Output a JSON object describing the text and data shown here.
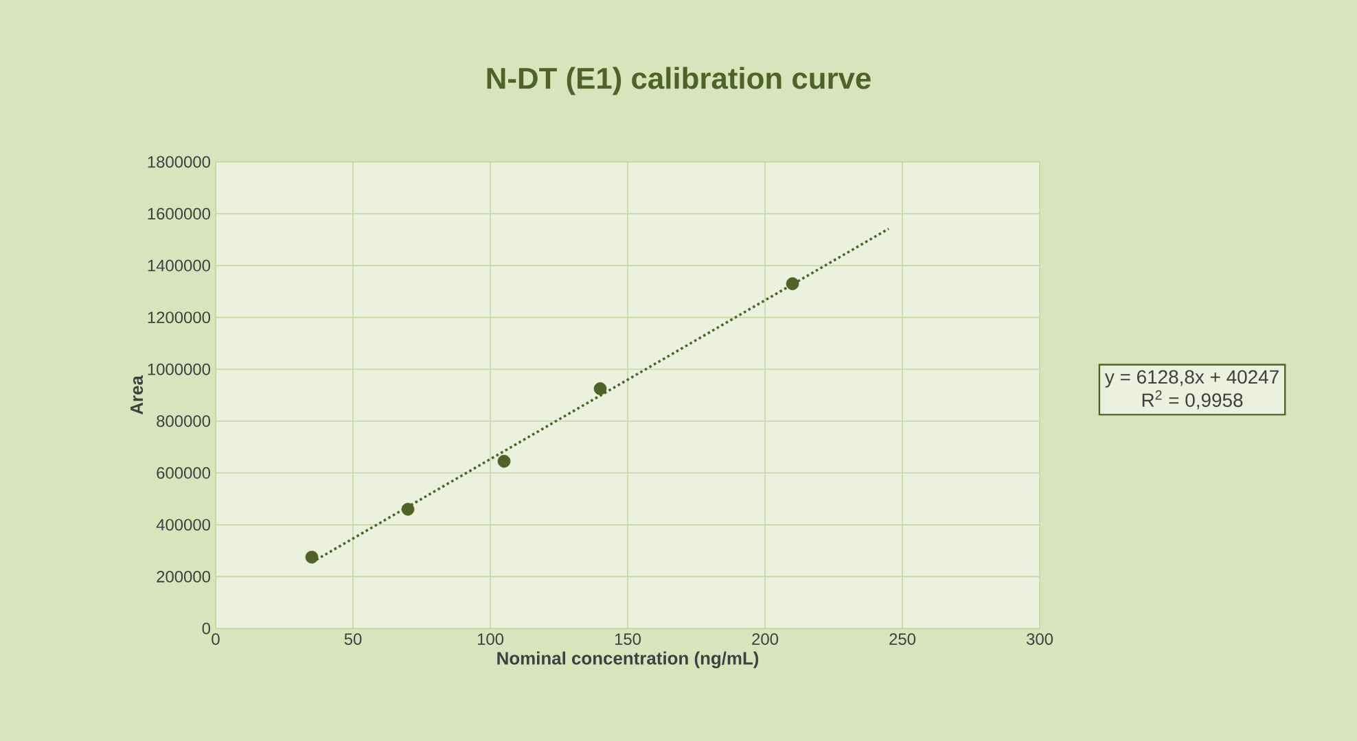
{
  "chart_data": {
    "type": "scatter",
    "title": "N-DT (E1) calibration curve",
    "xlabel": "Nominal concentration (ng/mL)",
    "ylabel": "Area",
    "x": [
      35,
      70,
      105,
      140,
      210
    ],
    "series": [
      {
        "color": "#4f6228",
        "marker": "circle",
        "values": [
          275000,
          460000,
          645000,
          925000,
          1330000
        ]
      },
      {
        "type": "line",
        "color": "#4f6228",
        "line_style": "dotted",
        "marker": "none",
        "x": [
          35,
          245
        ],
        "values": [
          255000,
          1542000
        ]
      }
    ],
    "xlim": [
      0,
      300
    ],
    "xticks": [
      0,
      50,
      100,
      150,
      200,
      250,
      300
    ],
    "ylim": [
      0,
      1800000
    ],
    "yticks": [
      0,
      200000,
      400000,
      600000,
      800000,
      1000000,
      1200000,
      1400000,
      1600000,
      1800000
    ],
    "grid": true,
    "annotations": [
      "y = 6128,8x + 40247",
      "R$^{2}$ = 0,9958"
    ]
  }
}
